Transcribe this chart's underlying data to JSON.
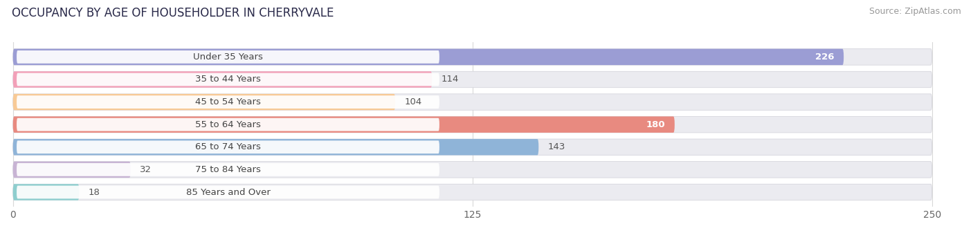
{
  "title": "OCCUPANCY BY AGE OF HOUSEHOLDER IN CHERRYVALE",
  "source": "Source: ZipAtlas.com",
  "categories": [
    "Under 35 Years",
    "35 to 44 Years",
    "45 to 54 Years",
    "55 to 64 Years",
    "65 to 74 Years",
    "75 to 84 Years",
    "85 Years and Over"
  ],
  "values": [
    226,
    114,
    104,
    180,
    143,
    32,
    18
  ],
  "bar_colors": [
    "#9b9dd4",
    "#f2a0b8",
    "#f8ca96",
    "#e88a80",
    "#8fb4d8",
    "#c8b4d4",
    "#8ecece"
  ],
  "label_inside": [
    true,
    false,
    false,
    true,
    false,
    false,
    false
  ],
  "xlim_min": -3,
  "xlim_max": 258,
  "x_max_data": 250,
  "xticks": [
    0,
    125,
    250
  ],
  "background_color": "#ffffff",
  "bar_bg_color": "#ebebf0",
  "grid_color": "#d8d8d8",
  "title_fontsize": 12,
  "source_fontsize": 9,
  "label_fontsize": 9.5,
  "tick_fontsize": 10,
  "cat_fontsize": 9.5,
  "cat_label_color": "#444444",
  "value_label_dark": "#555555",
  "value_label_light": "#ffffff"
}
